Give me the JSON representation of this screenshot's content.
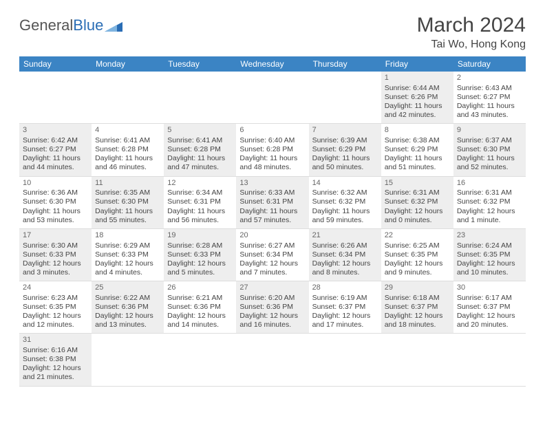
{
  "logo": {
    "general": "General",
    "blue": "Blue"
  },
  "title": "March 2024",
  "location": "Tai Wo, Hong Kong",
  "colors": {
    "header_bg": "#3b84c4",
    "header_text": "#ffffff",
    "shade_bg": "#eeeeee",
    "border": "#dddddd",
    "text": "#444444",
    "logo_gray": "#555555",
    "logo_blue": "#2a6db5"
  },
  "daynames": [
    "Sunday",
    "Monday",
    "Tuesday",
    "Wednesday",
    "Thursday",
    "Friday",
    "Saturday"
  ],
  "weeks": [
    [
      {
        "n": "",
        "sr": "",
        "ss": "",
        "dl": ""
      },
      {
        "n": "",
        "sr": "",
        "ss": "",
        "dl": ""
      },
      {
        "n": "",
        "sr": "",
        "ss": "",
        "dl": ""
      },
      {
        "n": "",
        "sr": "",
        "ss": "",
        "dl": ""
      },
      {
        "n": "",
        "sr": "",
        "ss": "",
        "dl": ""
      },
      {
        "n": "1",
        "sr": "Sunrise: 6:44 AM",
        "ss": "Sunset: 6:26 PM",
        "dl": "Daylight: 11 hours and 42 minutes."
      },
      {
        "n": "2",
        "sr": "Sunrise: 6:43 AM",
        "ss": "Sunset: 6:27 PM",
        "dl": "Daylight: 11 hours and 43 minutes."
      }
    ],
    [
      {
        "n": "3",
        "sr": "Sunrise: 6:42 AM",
        "ss": "Sunset: 6:27 PM",
        "dl": "Daylight: 11 hours and 44 minutes."
      },
      {
        "n": "4",
        "sr": "Sunrise: 6:41 AM",
        "ss": "Sunset: 6:28 PM",
        "dl": "Daylight: 11 hours and 46 minutes."
      },
      {
        "n": "5",
        "sr": "Sunrise: 6:41 AM",
        "ss": "Sunset: 6:28 PM",
        "dl": "Daylight: 11 hours and 47 minutes."
      },
      {
        "n": "6",
        "sr": "Sunrise: 6:40 AM",
        "ss": "Sunset: 6:28 PM",
        "dl": "Daylight: 11 hours and 48 minutes."
      },
      {
        "n": "7",
        "sr": "Sunrise: 6:39 AM",
        "ss": "Sunset: 6:29 PM",
        "dl": "Daylight: 11 hours and 50 minutes."
      },
      {
        "n": "8",
        "sr": "Sunrise: 6:38 AM",
        "ss": "Sunset: 6:29 PM",
        "dl": "Daylight: 11 hours and 51 minutes."
      },
      {
        "n": "9",
        "sr": "Sunrise: 6:37 AM",
        "ss": "Sunset: 6:30 PM",
        "dl": "Daylight: 11 hours and 52 minutes."
      }
    ],
    [
      {
        "n": "10",
        "sr": "Sunrise: 6:36 AM",
        "ss": "Sunset: 6:30 PM",
        "dl": "Daylight: 11 hours and 53 minutes."
      },
      {
        "n": "11",
        "sr": "Sunrise: 6:35 AM",
        "ss": "Sunset: 6:30 PM",
        "dl": "Daylight: 11 hours and 55 minutes."
      },
      {
        "n": "12",
        "sr": "Sunrise: 6:34 AM",
        "ss": "Sunset: 6:31 PM",
        "dl": "Daylight: 11 hours and 56 minutes."
      },
      {
        "n": "13",
        "sr": "Sunrise: 6:33 AM",
        "ss": "Sunset: 6:31 PM",
        "dl": "Daylight: 11 hours and 57 minutes."
      },
      {
        "n": "14",
        "sr": "Sunrise: 6:32 AM",
        "ss": "Sunset: 6:32 PM",
        "dl": "Daylight: 11 hours and 59 minutes."
      },
      {
        "n": "15",
        "sr": "Sunrise: 6:31 AM",
        "ss": "Sunset: 6:32 PM",
        "dl": "Daylight: 12 hours and 0 minutes."
      },
      {
        "n": "16",
        "sr": "Sunrise: 6:31 AM",
        "ss": "Sunset: 6:32 PM",
        "dl": "Daylight: 12 hours and 1 minute."
      }
    ],
    [
      {
        "n": "17",
        "sr": "Sunrise: 6:30 AM",
        "ss": "Sunset: 6:33 PM",
        "dl": "Daylight: 12 hours and 3 minutes."
      },
      {
        "n": "18",
        "sr": "Sunrise: 6:29 AM",
        "ss": "Sunset: 6:33 PM",
        "dl": "Daylight: 12 hours and 4 minutes."
      },
      {
        "n": "19",
        "sr": "Sunrise: 6:28 AM",
        "ss": "Sunset: 6:33 PM",
        "dl": "Daylight: 12 hours and 5 minutes."
      },
      {
        "n": "20",
        "sr": "Sunrise: 6:27 AM",
        "ss": "Sunset: 6:34 PM",
        "dl": "Daylight: 12 hours and 7 minutes."
      },
      {
        "n": "21",
        "sr": "Sunrise: 6:26 AM",
        "ss": "Sunset: 6:34 PM",
        "dl": "Daylight: 12 hours and 8 minutes."
      },
      {
        "n": "22",
        "sr": "Sunrise: 6:25 AM",
        "ss": "Sunset: 6:35 PM",
        "dl": "Daylight: 12 hours and 9 minutes."
      },
      {
        "n": "23",
        "sr": "Sunrise: 6:24 AM",
        "ss": "Sunset: 6:35 PM",
        "dl": "Daylight: 12 hours and 10 minutes."
      }
    ],
    [
      {
        "n": "24",
        "sr": "Sunrise: 6:23 AM",
        "ss": "Sunset: 6:35 PM",
        "dl": "Daylight: 12 hours and 12 minutes."
      },
      {
        "n": "25",
        "sr": "Sunrise: 6:22 AM",
        "ss": "Sunset: 6:36 PM",
        "dl": "Daylight: 12 hours and 13 minutes."
      },
      {
        "n": "26",
        "sr": "Sunrise: 6:21 AM",
        "ss": "Sunset: 6:36 PM",
        "dl": "Daylight: 12 hours and 14 minutes."
      },
      {
        "n": "27",
        "sr": "Sunrise: 6:20 AM",
        "ss": "Sunset: 6:36 PM",
        "dl": "Daylight: 12 hours and 16 minutes."
      },
      {
        "n": "28",
        "sr": "Sunrise: 6:19 AM",
        "ss": "Sunset: 6:37 PM",
        "dl": "Daylight: 12 hours and 17 minutes."
      },
      {
        "n": "29",
        "sr": "Sunrise: 6:18 AM",
        "ss": "Sunset: 6:37 PM",
        "dl": "Daylight: 12 hours and 18 minutes."
      },
      {
        "n": "30",
        "sr": "Sunrise: 6:17 AM",
        "ss": "Sunset: 6:37 PM",
        "dl": "Daylight: 12 hours and 20 minutes."
      }
    ],
    [
      {
        "n": "31",
        "sr": "Sunrise: 6:16 AM",
        "ss": "Sunset: 6:38 PM",
        "dl": "Daylight: 12 hours and 21 minutes."
      },
      {
        "n": "",
        "sr": "",
        "ss": "",
        "dl": ""
      },
      {
        "n": "",
        "sr": "",
        "ss": "",
        "dl": ""
      },
      {
        "n": "",
        "sr": "",
        "ss": "",
        "dl": ""
      },
      {
        "n": "",
        "sr": "",
        "ss": "",
        "dl": ""
      },
      {
        "n": "",
        "sr": "",
        "ss": "",
        "dl": ""
      },
      {
        "n": "",
        "sr": "",
        "ss": "",
        "dl": ""
      }
    ]
  ]
}
